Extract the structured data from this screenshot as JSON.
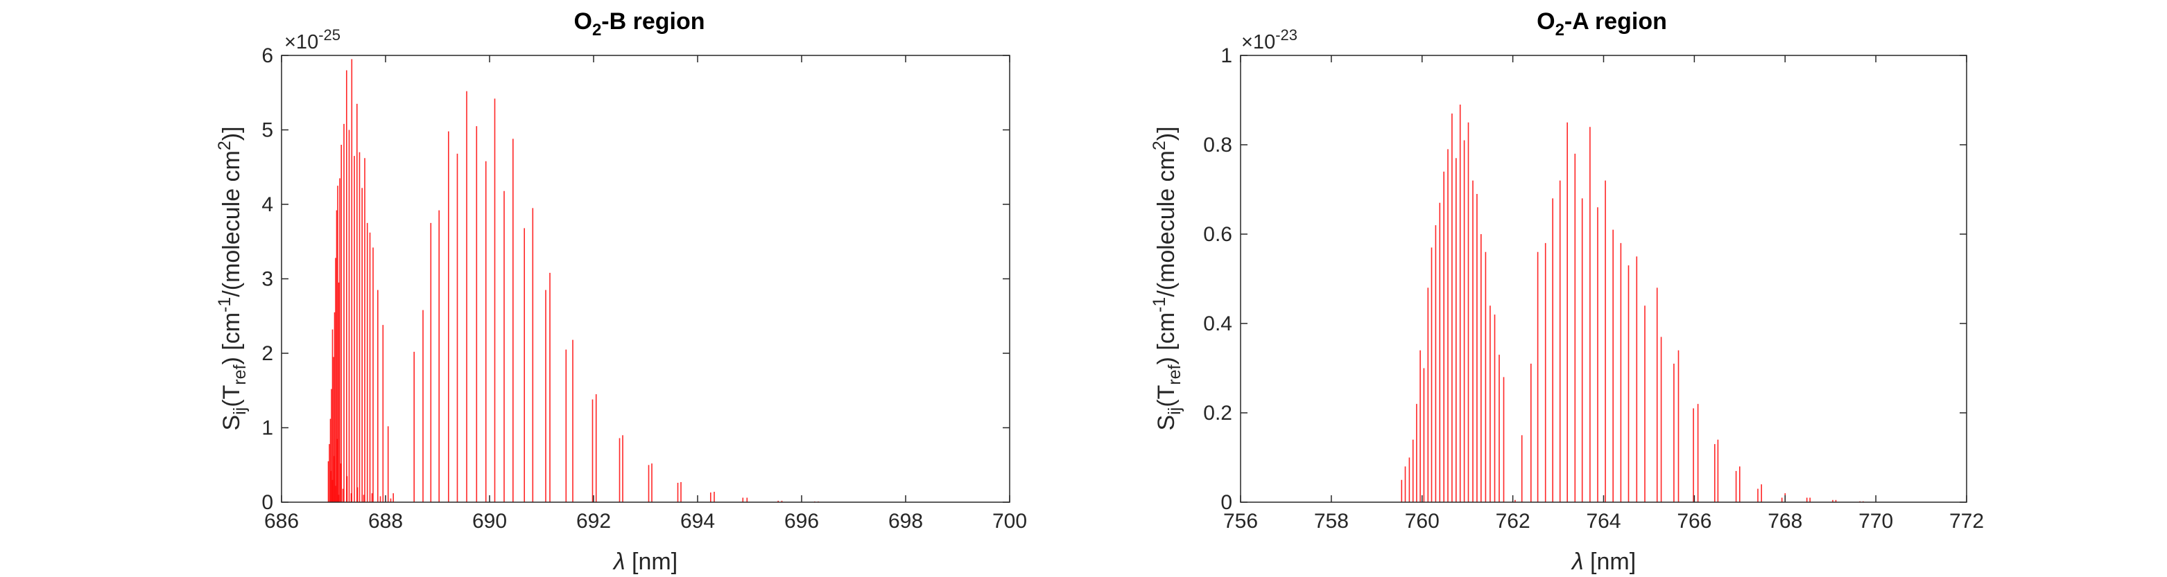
{
  "chart_data": [
    {
      "type": "stem",
      "title": "O2-B region",
      "title_parts": {
        "base": "O",
        "sub": "2",
        "rest": "-B region"
      },
      "xlabel": {
        "greek": "λ",
        "rest": " [nm]"
      },
      "ylabel": {
        "p1": "S",
        "p1sub": "ij",
        "p2": "(T",
        "p2sub": "ref",
        "p3": ") [cm",
        "p3sup": "-1",
        "p4": "/(molecule cm",
        "p4sup": "2",
        "p5": ")]"
      },
      "xlim": [
        686,
        700
      ],
      "ylim": [
        0,
        6
      ],
      "xticks": [
        "686",
        "688",
        "690",
        "692",
        "694",
        "696",
        "698",
        "700"
      ],
      "yticks": [
        "0",
        "1",
        "2",
        "3",
        "4",
        "5",
        "6"
      ],
      "exponent": {
        "base": "×10",
        "power": "-25"
      },
      "grid": false,
      "color": "#ff0000",
      "x": [
        686.9,
        686.92,
        686.94,
        686.96,
        686.98,
        687.0,
        687.02,
        687.04,
        687.06,
        687.08,
        687.1,
        687.12,
        687.15,
        687.2,
        687.25,
        687.3,
        687.35,
        687.4,
        687.45,
        687.5,
        687.55,
        687.6,
        687.65,
        687.7,
        687.76,
        687.85,
        687.95,
        688.05,
        688.15,
        686.95,
        686.98,
        687.01,
        687.04,
        687.07,
        687.1,
        687.14,
        687.18,
        687.26,
        687.34,
        687.46,
        687.58,
        687.74,
        687.9,
        688.1,
        688.55,
        688.72,
        688.87,
        689.03,
        689.21,
        689.38,
        689.56,
        689.75,
        689.93,
        690.1,
        690.28,
        690.45,
        690.67,
        690.83,
        691.08,
        691.16,
        691.47,
        691.6,
        691.98,
        692.05,
        692.5,
        692.56,
        693.06,
        693.12,
        693.62,
        693.68,
        694.25,
        694.32,
        694.87,
        694.95,
        695.55,
        695.62,
        696.25,
        696.32
      ],
      "y": [
        0.55,
        0.78,
        1.12,
        1.52,
        2.32,
        1.95,
        2.55,
        3.28,
        3.92,
        4.25,
        2.95,
        4.35,
        4.8,
        5.08,
        5.8,
        5.0,
        5.95,
        4.65,
        5.35,
        4.7,
        4.22,
        4.62,
        3.75,
        3.62,
        3.42,
        2.85,
        2.38,
        1.02,
        0.12,
        0.42,
        0.3,
        0.62,
        0.22,
        0.85,
        0.1,
        0.52,
        0.18,
        0.35,
        0.12,
        0.2,
        0.1,
        0.12,
        0.08,
        0.05,
        2.02,
        2.58,
        3.75,
        3.92,
        4.98,
        4.68,
        5.52,
        5.05,
        4.58,
        5.42,
        4.18,
        4.88,
        3.68,
        3.95,
        2.85,
        3.08,
        2.05,
        2.18,
        1.38,
        1.45,
        0.86,
        0.9,
        0.5,
        0.52,
        0.26,
        0.27,
        0.13,
        0.14,
        0.06,
        0.06,
        0.02,
        0.02,
        0.01,
        0.01
      ]
    },
    {
      "type": "stem",
      "title": "O2-A region",
      "title_parts": {
        "base": "O",
        "sub": "2",
        "rest": "-A region"
      },
      "xlabel": {
        "greek": "λ",
        "rest": " [nm]"
      },
      "ylabel": {
        "p1": "S",
        "p1sub": "ij",
        "p2": "(T",
        "p2sub": "ref",
        "p3": ") [cm",
        "p3sup": "-1",
        "p4": "/(molecule cm",
        "p4sup": "2",
        "p5": ")]"
      },
      "xlim": [
        756,
        772
      ],
      "ylim": [
        0,
        1
      ],
      "xticks": [
        "756",
        "758",
        "760",
        "762",
        "764",
        "766",
        "768",
        "770",
        "772"
      ],
      "yticks": [
        "0",
        "0.2",
        "0.4",
        "0.6",
        "0.8",
        "1"
      ],
      "exponent": {
        "base": "×10",
        "power": "-23"
      },
      "grid": false,
      "color": "#ff0000",
      "x": [
        759.55,
        759.63,
        759.72,
        759.8,
        759.88,
        759.96,
        760.04,
        760.13,
        760.21,
        760.3,
        760.39,
        760.48,
        760.57,
        760.66,
        760.75,
        760.84,
        760.93,
        761.02,
        761.12,
        761.21,
        761.3,
        761.4,
        761.5,
        761.6,
        761.7,
        761.8,
        762.05,
        762.2,
        762.4,
        762.55,
        762.72,
        762.88,
        763.04,
        763.2,
        763.37,
        763.53,
        763.7,
        763.87,
        764.04,
        764.21,
        764.38,
        764.55,
        764.73,
        764.91,
        765.18,
        765.27,
        765.55,
        765.65,
        765.98,
        766.08,
        766.45,
        766.52,
        766.92,
        767.0,
        767.4,
        767.48,
        767.93,
        768.0,
        768.48,
        768.55,
        769.05,
        769.12,
        769.65,
        769.72
      ],
      "y": [
        0.05,
        0.08,
        0.1,
        0.14,
        0.22,
        0.34,
        0.3,
        0.48,
        0.57,
        0.62,
        0.67,
        0.74,
        0.79,
        0.87,
        0.77,
        0.89,
        0.81,
        0.85,
        0.72,
        0.69,
        0.6,
        0.56,
        0.44,
        0.42,
        0.33,
        0.28,
        0.005,
        0.15,
        0.31,
        0.56,
        0.58,
        0.68,
        0.72,
        0.85,
        0.78,
        0.68,
        0.84,
        0.66,
        0.72,
        0.61,
        0.58,
        0.53,
        0.55,
        0.44,
        0.48,
        0.37,
        0.31,
        0.34,
        0.21,
        0.22,
        0.13,
        0.14,
        0.07,
        0.08,
        0.03,
        0.04,
        0.01,
        0.02,
        0.01,
        0.01,
        0.005,
        0.005,
        0.002,
        0.002
      ]
    }
  ]
}
